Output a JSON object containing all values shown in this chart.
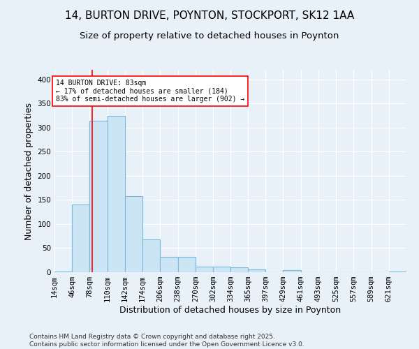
{
  "title": "14, BURTON DRIVE, POYNTON, STOCKPORT, SK12 1AA",
  "subtitle": "Size of property relative to detached houses in Poynton",
  "xlabel": "Distribution of detached houses by size in Poynton",
  "ylabel": "Number of detached properties",
  "footer_line1": "Contains HM Land Registry data © Crown copyright and database right 2025.",
  "footer_line2": "Contains public sector information licensed under the Open Government Licence v3.0.",
  "bar_edges": [
    14,
    46,
    78,
    110,
    142,
    174,
    206,
    238,
    270,
    302,
    334,
    365,
    397,
    429,
    461,
    493,
    525,
    557,
    589,
    621,
    653
  ],
  "bar_heights": [
    2,
    140,
    315,
    325,
    158,
    68,
    32,
    32,
    12,
    12,
    10,
    6,
    0,
    4,
    0,
    0,
    0,
    0,
    0,
    2
  ],
  "bar_color": "#cce5f5",
  "bar_edge_color": "#7ab8d9",
  "red_line_x": 83,
  "annotation_text": "14 BURTON DRIVE: 83sqm\n← 17% of detached houses are smaller (184)\n83% of semi-detached houses are larger (902) →",
  "background_color": "#e8f0f8",
  "plot_bg_color": "#e8f0f8",
  "ylim": [
    0,
    420
  ],
  "yticks": [
    0,
    50,
    100,
    150,
    200,
    250,
    300,
    350,
    400
  ],
  "title_fontsize": 11,
  "subtitle_fontsize": 9.5,
  "axis_label_fontsize": 9,
  "tick_fontsize": 7.5,
  "footer_fontsize": 6.5
}
